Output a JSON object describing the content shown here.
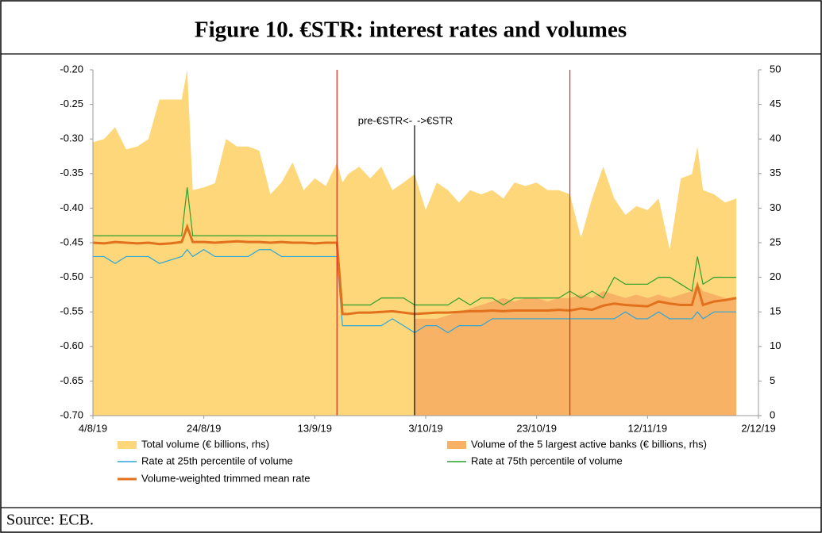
{
  "title": "Figure 10. €STR: interest rates and volumes",
  "source": "Source: ECB.",
  "chart_data": {
    "type": "line",
    "annotations": [
      "pre-€STR<-",
      "->€STR"
    ],
    "reference_lines": [
      {
        "x": 44,
        "color": "#e8261c"
      },
      {
        "x": 58,
        "color": "#000000"
      },
      {
        "x": 86,
        "color": "#e8261c"
      }
    ],
    "x": [
      0,
      2,
      4,
      6,
      8,
      10,
      12,
      14,
      16,
      17,
      18,
      20,
      22,
      24,
      26,
      28,
      30,
      32,
      34,
      36,
      38,
      40,
      42,
      44,
      45,
      46,
      48,
      50,
      52,
      54,
      56,
      58,
      60,
      62,
      64,
      66,
      68,
      70,
      72,
      74,
      76,
      78,
      80,
      82,
      84,
      86,
      88,
      90,
      92,
      94,
      96,
      98,
      100,
      102,
      104,
      106,
      108,
      109,
      110,
      112,
      114,
      116
    ],
    "xlim": [
      0,
      120
    ],
    "xticks": [
      {
        "value": 0,
        "label": "4/8/19"
      },
      {
        "value": 20,
        "label": "24/8/19"
      },
      {
        "value": 40,
        "label": "13/9/19"
      },
      {
        "value": 60,
        "label": "3/10/19"
      },
      {
        "value": 80,
        "label": "23/10/19"
      },
      {
        "value": 100,
        "label": "12/11/19"
      },
      {
        "value": 120,
        "label": "2/12/19"
      }
    ],
    "ylim": [
      -0.7,
      -0.2
    ],
    "yticks": [
      {
        "value": -0.7,
        "label": "-0.70"
      },
      {
        "value": -0.65,
        "label": "-0.65"
      },
      {
        "value": -0.6,
        "label": "-0.60"
      },
      {
        "value": -0.55,
        "label": "-0.55"
      },
      {
        "value": -0.5,
        "label": "-0.50"
      },
      {
        "value": -0.45,
        "label": "-0.45"
      },
      {
        "value": -0.4,
        "label": "-0.40"
      },
      {
        "value": -0.35,
        "label": "-0.35"
      },
      {
        "value": -0.3,
        "label": "-0.30"
      },
      {
        "value": -0.25,
        "label": "-0.25"
      },
      {
        "value": -0.2,
        "label": "-0.20"
      }
    ],
    "y2lim": [
      0,
      50
    ],
    "y2ticks": [
      0,
      5,
      10,
      15,
      20,
      25,
      30,
      35,
      40,
      45,
      50
    ],
    "series": [
      {
        "name": "Total volume (€ billions, rhs)",
        "color": "#fdd77a",
        "style": "area",
        "axis": "y2",
        "values": [
          39.5,
          40,
          41.7,
          38.5,
          38.9,
          40,
          45.7,
          45.7,
          45.7,
          50,
          32.6,
          33,
          33.6,
          40,
          38.9,
          38.9,
          38.3,
          32,
          33.7,
          36.6,
          32.6,
          34.3,
          33.2,
          36.6,
          33.7,
          34.9,
          36,
          34.3,
          36,
          32.6,
          33.7,
          34.9,
          29.7,
          33.7,
          32.6,
          30.8,
          32.6,
          32,
          32.6,
          31.4,
          33.7,
          33.2,
          33.7,
          32.6,
          32.6,
          32,
          25.7,
          31.4,
          36,
          31.4,
          29,
          30.3,
          29.7,
          31.4,
          24,
          34.3,
          34.9,
          38.9,
          32.6,
          32,
          30.8,
          31.4
        ]
      },
      {
        "name": "Volume of the 5 largest active banks (€ billions, rhs)",
        "color": "#f7b266",
        "style": "area",
        "axis": "y2",
        "values": [
          null,
          null,
          null,
          null,
          null,
          null,
          null,
          null,
          null,
          null,
          null,
          null,
          null,
          null,
          null,
          null,
          null,
          null,
          null,
          null,
          null,
          null,
          null,
          null,
          null,
          null,
          null,
          null,
          null,
          null,
          null,
          14,
          14,
          14,
          14.5,
          15,
          15.5,
          16,
          16.5,
          17,
          16.5,
          17,
          17,
          16.5,
          17,
          17,
          17.5,
          17,
          18,
          17.5,
          17,
          17.5,
          17,
          17.5,
          17,
          17.5,
          18,
          19,
          18,
          17.5,
          17,
          17
        ]
      },
      {
        "name": "Rate at 25th percentile of volume",
        "color": "#2ea6d8",
        "style": "line",
        "values": [
          -0.47,
          -0.47,
          -0.48,
          -0.47,
          -0.47,
          -0.47,
          -0.48,
          -0.475,
          -0.47,
          -0.46,
          -0.47,
          -0.46,
          -0.47,
          -0.47,
          -0.47,
          -0.47,
          -0.46,
          -0.46,
          -0.47,
          -0.47,
          -0.47,
          -0.47,
          -0.47,
          -0.47,
          -0.57,
          -0.57,
          -0.57,
          -0.57,
          -0.57,
          -0.56,
          -0.57,
          -0.58,
          -0.57,
          -0.57,
          -0.58,
          -0.57,
          -0.57,
          -0.57,
          -0.56,
          -0.56,
          -0.56,
          -0.56,
          -0.56,
          -0.56,
          -0.56,
          -0.56,
          -0.56,
          -0.56,
          -0.56,
          -0.56,
          -0.55,
          -0.56,
          -0.56,
          -0.55,
          -0.56,
          -0.56,
          -0.56,
          -0.55,
          -0.56,
          -0.55,
          -0.55,
          -0.55
        ]
      },
      {
        "name": "Rate at 75th percentile of volume",
        "color": "#2ca02c",
        "style": "line",
        "values": [
          -0.44,
          -0.44,
          -0.44,
          -0.44,
          -0.44,
          -0.44,
          -0.44,
          -0.44,
          -0.44,
          -0.37,
          -0.44,
          -0.44,
          -0.44,
          -0.44,
          -0.44,
          -0.44,
          -0.44,
          -0.44,
          -0.44,
          -0.44,
          -0.44,
          -0.44,
          -0.44,
          -0.44,
          -0.54,
          -0.54,
          -0.54,
          -0.54,
          -0.53,
          -0.53,
          -0.53,
          -0.54,
          -0.54,
          -0.54,
          -0.54,
          -0.53,
          -0.54,
          -0.53,
          -0.53,
          -0.54,
          -0.53,
          -0.53,
          -0.53,
          -0.53,
          -0.53,
          -0.52,
          -0.53,
          -0.52,
          -0.53,
          -0.5,
          -0.51,
          -0.51,
          -0.51,
          -0.5,
          -0.5,
          -0.51,
          -0.52,
          -0.47,
          -0.51,
          -0.5,
          -0.5,
          -0.5
        ]
      },
      {
        "name": "Volume-weighted trimmed mean rate",
        "color": "#e2711d",
        "style": "line",
        "width": 3,
        "values": [
          -0.45,
          -0.451,
          -0.449,
          -0.45,
          -0.451,
          -0.45,
          -0.452,
          -0.451,
          -0.449,
          -0.427,
          -0.449,
          -0.449,
          -0.45,
          -0.449,
          -0.448,
          -0.449,
          -0.449,
          -0.45,
          -0.449,
          -0.45,
          -0.45,
          -0.451,
          -0.45,
          -0.45,
          -0.553,
          -0.553,
          -0.551,
          -0.551,
          -0.55,
          -0.549,
          -0.551,
          -0.553,
          -0.552,
          -0.551,
          -0.551,
          -0.55,
          -0.549,
          -0.549,
          -0.548,
          -0.549,
          -0.548,
          -0.548,
          -0.548,
          -0.548,
          -0.547,
          -0.548,
          -0.545,
          -0.547,
          -0.541,
          -0.538,
          -0.54,
          -0.541,
          -0.542,
          -0.535,
          -0.538,
          -0.54,
          -0.54,
          -0.512,
          -0.54,
          -0.535,
          -0.533,
          -0.53
        ]
      }
    ]
  }
}
